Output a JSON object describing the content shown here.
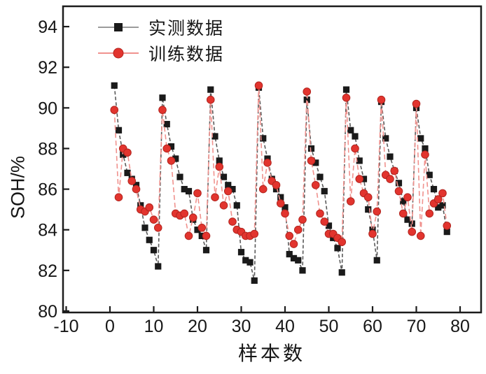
{
  "figure": {
    "background": "#ffffff",
    "frame_color": "#1c1c1c",
    "tick_color": "#1c1c1c"
  },
  "chart_data": {
    "type": "line",
    "title": "",
    "xlabel": "样本数",
    "ylabel": "SOH/%",
    "grid": false,
    "legend_position": "top-left-inside",
    "xlim": [
      -10.72,
      84.8
    ],
    "ylim": [
      79.93,
      95.0
    ],
    "x_ticks": [
      -10,
      0,
      10,
      20,
      30,
      40,
      50,
      60,
      70,
      80
    ],
    "y_ticks": [
      80,
      82,
      84,
      86,
      88,
      90,
      92,
      94
    ],
    "x": [
      1,
      2,
      3,
      4,
      5,
      6,
      7,
      8,
      9,
      10,
      11,
      12,
      13,
      14,
      15,
      16,
      17,
      18,
      19,
      20,
      21,
      22,
      23,
      24,
      25,
      26,
      27,
      28,
      29,
      30,
      31,
      32,
      33,
      34,
      35,
      36,
      37,
      38,
      39,
      40,
      41,
      42,
      43,
      44,
      45,
      46,
      47,
      48,
      49,
      50,
      51,
      52,
      53,
      54,
      55,
      56,
      57,
      58,
      59,
      60,
      61,
      62,
      63,
      64,
      65,
      66,
      67,
      68,
      69,
      70,
      71,
      72,
      73,
      74,
      75,
      76,
      77
    ],
    "series": [
      {
        "name": "实测数据",
        "marker": "square",
        "marker_color": "#1a1a1a",
        "line_color": "#5a5a5a",
        "line_dash": "5,3",
        "values": [
          91.1,
          88.9,
          87.7,
          86.8,
          86.5,
          86.2,
          85.2,
          84.1,
          83.5,
          83.0,
          82.2,
          90.5,
          89.2,
          88.1,
          87.5,
          86.6,
          86.0,
          85.9,
          84.5,
          84.0,
          83.7,
          83.0,
          90.9,
          88.6,
          87.4,
          86.6,
          86.2,
          86.0,
          85.2,
          82.9,
          82.5,
          82.4,
          81.5,
          91.0,
          88.5,
          87.5,
          86.5,
          86.0,
          85.6,
          85.1,
          82.8,
          82.6,
          82.5,
          82.0,
          90.4,
          88.0,
          87.3,
          86.6,
          85.9,
          84.2,
          83.6,
          83.1,
          81.9,
          90.9,
          88.9,
          88.6,
          87.4,
          86.5,
          85.0,
          84.0,
          82.5,
          90.3,
          88.5,
          87.6,
          86.9,
          86.3,
          85.4,
          84.5,
          84.3,
          90.0,
          88.5,
          88.0,
          86.7,
          86.0,
          85.1,
          85.2,
          83.9
        ]
      },
      {
        "name": "训练数据",
        "marker": "circle",
        "marker_color": "#e2342e",
        "marker_edge": "#b2251f",
        "line_color": "#f0928e",
        "line_dash": "7,4",
        "values": [
          89.9,
          85.6,
          88.0,
          87.8,
          86.4,
          86.0,
          85.0,
          84.9,
          85.1,
          84.5,
          84.1,
          89.9,
          88.0,
          87.4,
          84.8,
          84.7,
          84.8,
          83.7,
          84.6,
          85.8,
          84.1,
          83.7,
          90.4,
          85.6,
          87.1,
          85.2,
          85.9,
          84.4,
          84.0,
          83.9,
          83.7,
          83.7,
          83.8,
          91.1,
          86.0,
          87.3,
          86.4,
          86.2,
          85.3,
          84.8,
          83.7,
          83.3,
          84.0,
          84.5,
          90.8,
          87.4,
          86.2,
          84.8,
          84.4,
          83.8,
          83.8,
          83.6,
          83.4,
          90.5,
          85.4,
          88.0,
          86.5,
          85.8,
          85.6,
          83.8,
          84.9,
          90.4,
          86.7,
          86.5,
          86.9,
          85.9,
          84.8,
          85.6,
          83.9,
          90.2,
          83.7,
          87.7,
          84.8,
          85.3,
          85.5,
          85.8,
          84.2
        ]
      }
    ]
  }
}
